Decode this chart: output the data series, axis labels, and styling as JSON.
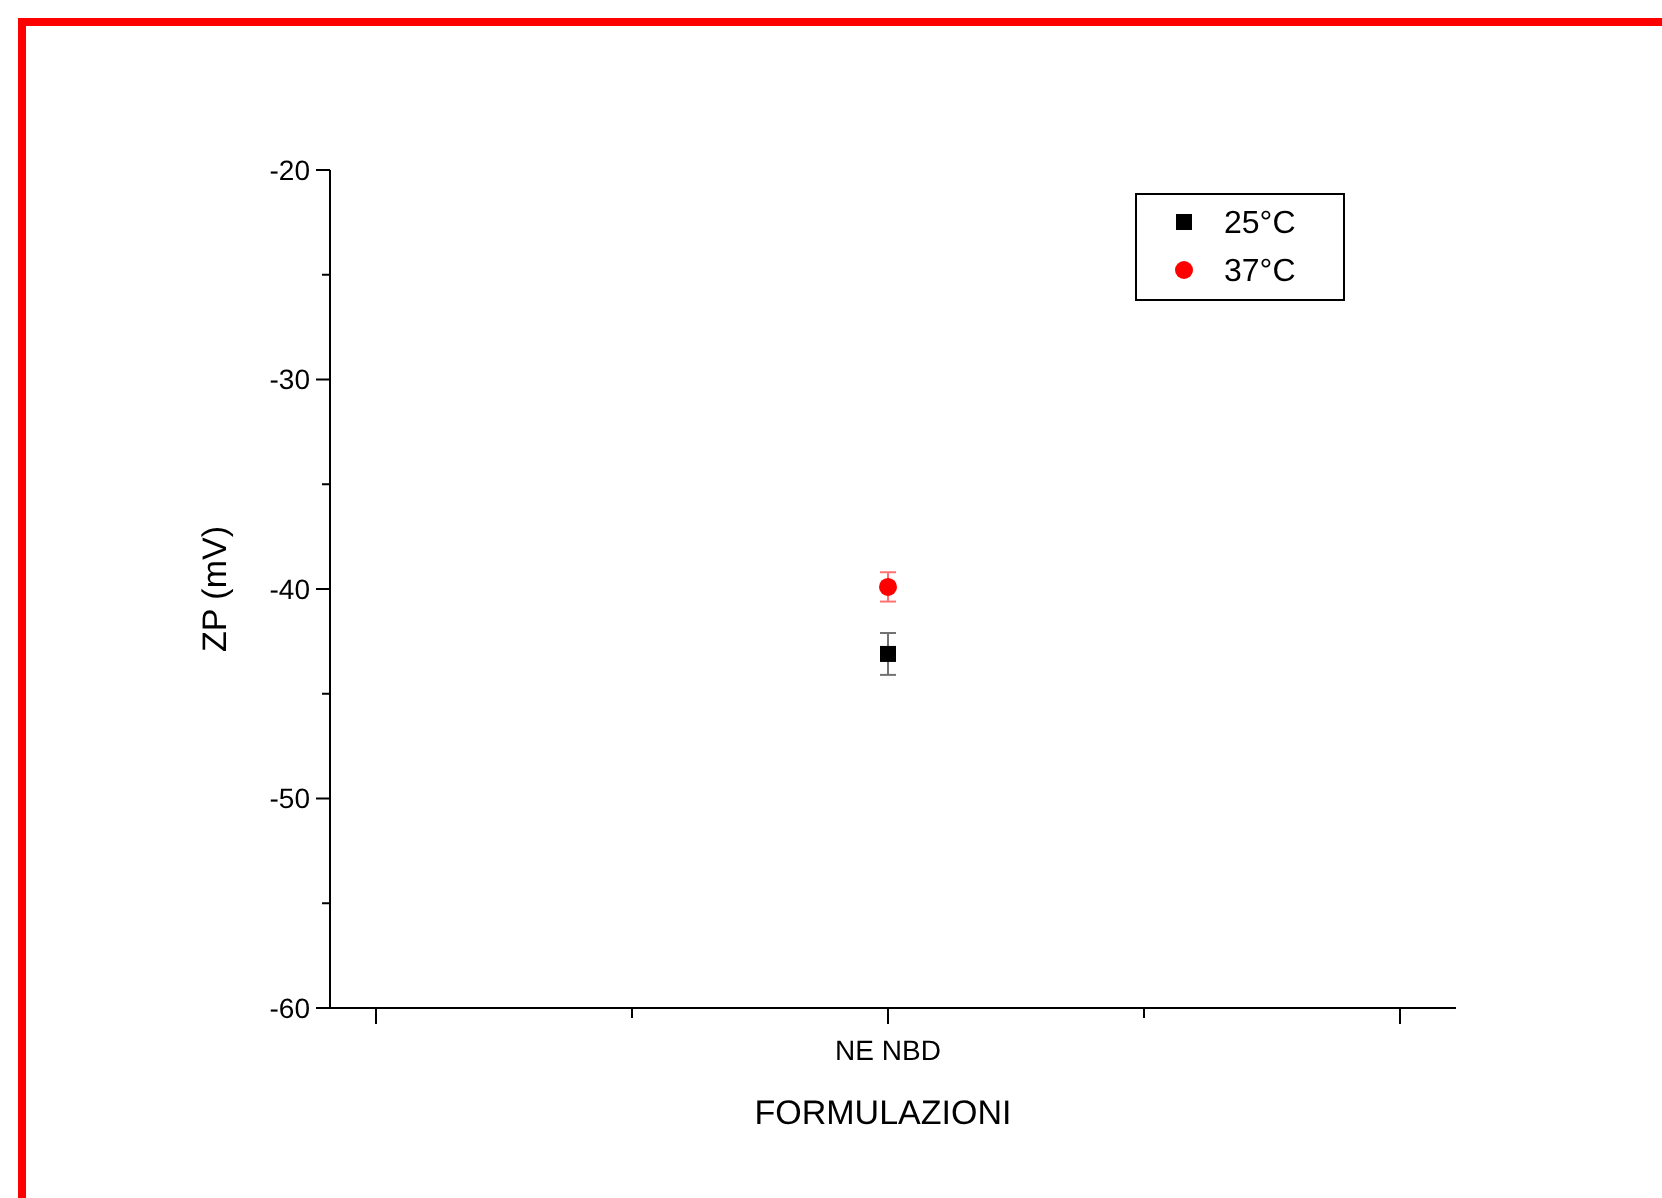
{
  "chart_data": {
    "type": "scatter",
    "xlabel": "FORMULAZIONI",
    "ylabel": "ZP (mV)",
    "categories": [
      null,
      "NE NBD",
      null
    ],
    "series": [
      {
        "name": "25°C",
        "color": "#000000",
        "marker": "square",
        "values": [
          null,
          -43.1,
          null
        ],
        "errors": [
          null,
          1.0,
          null
        ]
      },
      {
        "name": "37°C",
        "color": "#ff0000",
        "marker": "circle",
        "values": [
          null,
          -39.9,
          null
        ],
        "errors": [
          null,
          0.7,
          null
        ]
      }
    ],
    "ylim": [
      -60,
      -20
    ],
    "yticks": [
      -60,
      {
        "value": -55,
        "label": null
      },
      -50,
      {
        "value": -45,
        "label": null
      },
      -40,
      {
        "value": -35,
        "label": null
      },
      -30,
      {
        "value": -25,
        "label": null
      },
      -20
    ],
    "grid": false,
    "legend": "top right"
  }
}
